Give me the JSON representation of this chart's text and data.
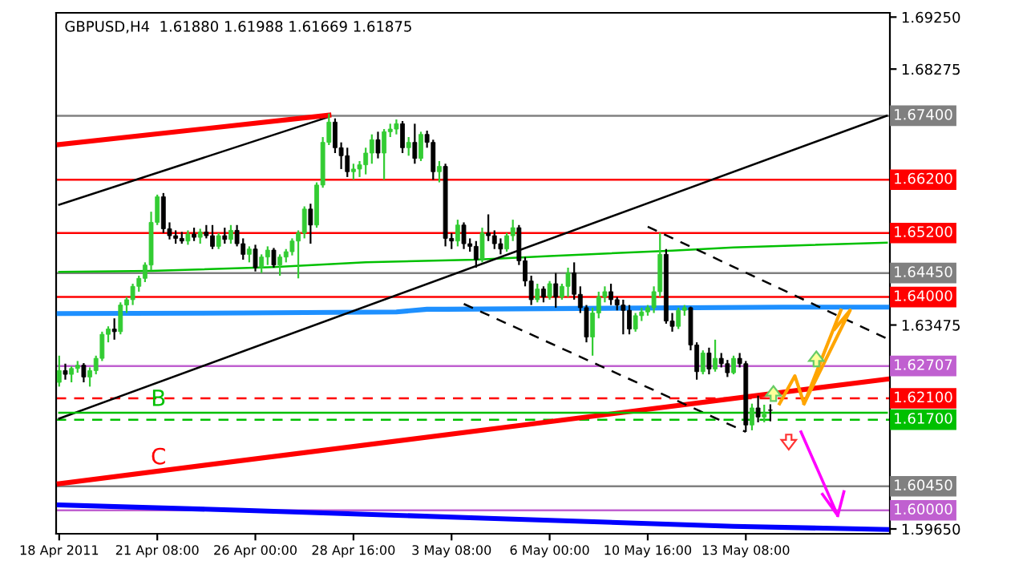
{
  "chart_data": {
    "type": "candlestick",
    "title": "GBPUSD,H4  1.61880 1.61988 1.61669 1.61875",
    "categories": [
      "18 Apr 2011",
      null,
      null,
      null,
      null,
      null,
      null,
      null,
      null,
      null,
      null,
      null,
      null,
      null,
      null,
      null,
      "21 Apr 08:00",
      null,
      null,
      null,
      null,
      null,
      null,
      null,
      null,
      null,
      null,
      null,
      null,
      null,
      null,
      null,
      "26 Apr 00:00",
      null,
      null,
      null,
      null,
      null,
      null,
      null,
      null,
      null,
      null,
      null,
      null,
      null,
      null,
      null,
      "28 Apr 16:00",
      null,
      null,
      null,
      null,
      null,
      null,
      null,
      null,
      null,
      null,
      null,
      null,
      null,
      null,
      null,
      "3 May 08:00",
      null,
      null,
      null,
      null,
      null,
      null,
      null,
      null,
      null,
      null,
      null,
      null,
      null,
      null,
      null,
      "6 May 00:00",
      null,
      null,
      null,
      null,
      null,
      null,
      null,
      null,
      null,
      null,
      null,
      null,
      null,
      null,
      null,
      "10 May 16:00",
      null,
      null,
      null,
      null,
      null,
      null,
      null,
      null,
      null,
      null,
      null,
      null,
      null,
      null,
      null,
      "13 May 08:00",
      null,
      null,
      null,
      null,
      null,
      null,
      null,
      null,
      null,
      null,
      null,
      null,
      null,
      null,
      null,
      null,
      null,
      null,
      null,
      null,
      null,
      null,
      null
    ],
    "ohlc": [
      [
        1.624,
        1.629,
        1.6232,
        1.6262
      ],
      [
        1.6262,
        1.6275,
        1.6245,
        1.6255
      ],
      [
        1.6255,
        1.627,
        1.624,
        1.6266
      ],
      [
        1.6266,
        1.628,
        1.6258,
        1.6272
      ],
      [
        1.6272,
        1.6276,
        1.624,
        1.625
      ],
      [
        1.625,
        1.6268,
        1.6232,
        1.6262
      ],
      [
        1.6262,
        1.629,
        1.6255,
        1.6285
      ],
      [
        1.6285,
        1.6335,
        1.628,
        1.633
      ],
      [
        1.633,
        1.6345,
        1.6315,
        1.634
      ],
      [
        1.634,
        1.636,
        1.632,
        1.6335
      ],
      [
        1.6335,
        1.639,
        1.633,
        1.6385
      ],
      [
        1.6385,
        1.64,
        1.637,
        1.6395
      ],
      [
        1.6395,
        1.6425,
        1.6385,
        1.642
      ],
      [
        1.642,
        1.644,
        1.641,
        1.6435
      ],
      [
        1.6435,
        1.6465,
        1.6428,
        1.646
      ],
      [
        1.646,
        1.656,
        1.645,
        1.654
      ],
      [
        1.654,
        1.6592,
        1.6535,
        1.6588
      ],
      [
        1.6588,
        1.6595,
        1.652,
        1.6528
      ],
      [
        1.6528,
        1.654,
        1.6508,
        1.6515
      ],
      [
        1.6515,
        1.6525,
        1.65,
        1.651
      ],
      [
        1.651,
        1.6522,
        1.65,
        1.6505
      ],
      [
        1.6505,
        1.6525,
        1.6498,
        1.6518
      ],
      [
        1.6518,
        1.653,
        1.6505,
        1.6512
      ],
      [
        1.6512,
        1.6528,
        1.65,
        1.6522
      ],
      [
        1.6522,
        1.6535,
        1.651,
        1.6515
      ],
      [
        1.6515,
        1.6535,
        1.649,
        1.6495
      ],
      [
        1.6495,
        1.652,
        1.649,
        1.6515
      ],
      [
        1.6515,
        1.653,
        1.65,
        1.6508
      ],
      [
        1.6508,
        1.6535,
        1.65,
        1.6525
      ],
      [
        1.6525,
        1.6535,
        1.6495,
        1.65
      ],
      [
        1.65,
        1.651,
        1.647,
        1.648
      ],
      [
        1.648,
        1.6495,
        1.6465,
        1.649
      ],
      [
        1.649,
        1.6498,
        1.6448,
        1.6455
      ],
      [
        1.6455,
        1.648,
        1.6445,
        1.6475
      ],
      [
        1.6475,
        1.6495,
        1.646,
        1.6488
      ],
      [
        1.6488,
        1.6492,
        1.6455,
        1.646
      ],
      [
        1.646,
        1.648,
        1.644,
        1.6475
      ],
      [
        1.6475,
        1.649,
        1.6465,
        1.6485
      ],
      [
        1.6485,
        1.651,
        1.6478,
        1.6505
      ],
      [
        1.6505,
        1.6525,
        1.6435,
        1.652
      ],
      [
        1.652,
        1.657,
        1.651,
        1.6565
      ],
      [
        1.6565,
        1.6575,
        1.65,
        1.6535
      ],
      [
        1.6535,
        1.6615,
        1.653,
        1.661
      ],
      [
        1.661,
        1.67,
        1.6605,
        1.669
      ],
      [
        1.669,
        1.6744,
        1.6685,
        1.6728
      ],
      [
        1.6728,
        1.6735,
        1.667,
        1.668
      ],
      [
        1.668,
        1.669,
        1.664,
        1.6665
      ],
      [
        1.6665,
        1.668,
        1.6625,
        1.6635
      ],
      [
        1.6635,
        1.665,
        1.662,
        1.664
      ],
      [
        1.664,
        1.6655,
        1.6625,
        1.6648
      ],
      [
        1.6648,
        1.668,
        1.663,
        1.667
      ],
      [
        1.667,
        1.6705,
        1.665,
        1.6695
      ],
      [
        1.6695,
        1.671,
        1.666,
        1.667
      ],
      [
        1.667,
        1.6715,
        1.662,
        1.671
      ],
      [
        1.671,
        1.6725,
        1.67,
        1.6715
      ],
      [
        1.6715,
        1.6733,
        1.6705,
        1.6725
      ],
      [
        1.6725,
        1.673,
        1.667,
        1.668
      ],
      [
        1.668,
        1.67,
        1.6665,
        1.669
      ],
      [
        1.669,
        1.6725,
        1.665,
        1.666
      ],
      [
        1.666,
        1.671,
        1.6655,
        1.6705
      ],
      [
        1.6705,
        1.6712,
        1.668,
        1.669
      ],
      [
        1.669,
        1.6695,
        1.662,
        1.6635
      ],
      [
        1.6635,
        1.6655,
        1.6615,
        1.6645
      ],
      [
        1.6645,
        1.665,
        1.6495,
        1.651
      ],
      [
        1.651,
        1.652,
        1.649,
        1.6505
      ],
      [
        1.6505,
        1.6545,
        1.6495,
        1.6535
      ],
      [
        1.6535,
        1.654,
        1.649,
        1.65
      ],
      [
        1.65,
        1.651,
        1.6485,
        1.6495
      ],
      [
        1.6495,
        1.6505,
        1.6455,
        1.647
      ],
      [
        1.647,
        1.653,
        1.6465,
        1.652
      ],
      [
        1.652,
        1.6555,
        1.6505,
        1.6515
      ],
      [
        1.6515,
        1.6525,
        1.649,
        1.65
      ],
      [
        1.65,
        1.651,
        1.648,
        1.649
      ],
      [
        1.649,
        1.652,
        1.6485,
        1.6515
      ],
      [
        1.6515,
        1.6545,
        1.6505,
        1.653
      ],
      [
        1.653,
        1.6535,
        1.646,
        1.6468
      ],
      [
        1.6468,
        1.6475,
        1.642,
        1.643
      ],
      [
        1.643,
        1.644,
        1.6385,
        1.6395
      ],
      [
        1.6395,
        1.6425,
        1.639,
        1.6415
      ],
      [
        1.6415,
        1.642,
        1.639,
        1.64
      ],
      [
        1.64,
        1.643,
        1.6395,
        1.6425
      ],
      [
        1.6425,
        1.6445,
        1.638,
        1.64
      ],
      [
        1.64,
        1.6425,
        1.6395,
        1.642
      ],
      [
        1.642,
        1.6455,
        1.64,
        1.6445
      ],
      [
        1.6445,
        1.6465,
        1.6395,
        1.6405
      ],
      [
        1.6405,
        1.642,
        1.637,
        1.638
      ],
      [
        1.638,
        1.6385,
        1.6315,
        1.6325
      ],
      [
        1.6325,
        1.638,
        1.629,
        1.637
      ],
      [
        1.637,
        1.641,
        1.636,
        1.64
      ],
      [
        1.64,
        1.642,
        1.639,
        1.641
      ],
      [
        1.641,
        1.6425,
        1.6385,
        1.6395
      ],
      [
        1.6395,
        1.64,
        1.6375,
        1.6385
      ],
      [
        1.6385,
        1.6395,
        1.633,
        1.6375
      ],
      [
        1.6375,
        1.6385,
        1.633,
        1.634
      ],
      [
        1.634,
        1.637,
        1.6335,
        1.6365
      ],
      [
        1.6365,
        1.638,
        1.6355,
        1.6372
      ],
      [
        1.6372,
        1.6385,
        1.6365,
        1.638
      ],
      [
        1.638,
        1.642,
        1.637,
        1.641
      ],
      [
        1.641,
        1.652,
        1.64,
        1.648
      ],
      [
        1.648,
        1.649,
        1.635,
        1.6355
      ],
      [
        1.6355,
        1.637,
        1.6335,
        1.6345
      ],
      [
        1.6345,
        1.638,
        1.634,
        1.6375
      ],
      [
        1.6375,
        1.6385,
        1.6365,
        1.638
      ],
      [
        1.638,
        1.6382,
        1.63,
        1.631
      ],
      [
        1.631,
        1.6315,
        1.6245,
        1.626
      ],
      [
        1.626,
        1.63,
        1.6255,
        1.6295
      ],
      [
        1.6295,
        1.6305,
        1.6255,
        1.6265
      ],
      [
        1.6265,
        1.632,
        1.626,
        1.6285
      ],
      [
        1.6285,
        1.6295,
        1.6268,
        1.6275
      ],
      [
        1.6275,
        1.6282,
        1.625,
        1.6258
      ],
      [
        1.6258,
        1.629,
        1.6255,
        1.6285
      ],
      [
        1.6285,
        1.6295,
        1.6268,
        1.6275
      ],
      [
        1.6275,
        1.628,
        1.6147,
        1.616
      ],
      [
        1.616,
        1.62,
        1.615,
        1.6192
      ],
      [
        1.6192,
        1.6215,
        1.6165,
        1.6175
      ],
      [
        1.6175,
        1.6198,
        1.6165,
        1.618
      ],
      [
        1.6188,
        1.61988,
        1.61669,
        1.61875
      ],
      null,
      null,
      null,
      null,
      null,
      null,
      null,
      null,
      null,
      null,
      null,
      null,
      null,
      null,
      null,
      null,
      null,
      null,
      null
    ],
    "series": [
      {
        "type": "line",
        "color": "#00c000",
        "values": [
          1.6447,
          null,
          null,
          null,
          null,
          null,
          null,
          null,
          null,
          null,
          null,
          null,
          null,
          null,
          null,
          1.6449,
          null,
          null,
          null,
          null,
          null,
          null,
          null,
          null,
          null,
          null,
          null,
          null,
          null,
          null,
          null,
          null,
          null,
          null,
          null,
          1.6456,
          null,
          null,
          null,
          null,
          null,
          null,
          null,
          null,
          null,
          null,
          null,
          null,
          null,
          null,
          1.6465,
          null,
          null,
          null,
          null,
          null,
          null,
          null,
          null,
          null,
          null,
          null,
          null,
          null,
          null,
          null,
          null,
          null,
          1.647,
          null,
          null,
          null,
          null,
          null,
          null,
          null,
          null,
          null,
          null,
          null,
          1.6477,
          null,
          null,
          null,
          null,
          null,
          null,
          null,
          null,
          null,
          null,
          null,
          null,
          null,
          null,
          null,
          null,
          null,
          null,
          null,
          1.6487,
          null,
          null,
          null,
          null,
          null,
          null,
          null,
          null,
          null,
          1.6493,
          null,
          null,
          null,
          null,
          null,
          null,
          null,
          null,
          null,
          null,
          null,
          null,
          null,
          null,
          null,
          null,
          null,
          null,
          null,
          null,
          null,
          null,
          null,
          null,
          1.6502
        ]
      },
      {
        "type": "line",
        "color": "#1e90ff",
        "values": [
          1.6369,
          null,
          null,
          null,
          null,
          null,
          null,
          null,
          null,
          null,
          null,
          null,
          null,
          null,
          null,
          null,
          null,
          null,
          null,
          null,
          null,
          null,
          null,
          null,
          null,
          null,
          null,
          null,
          null,
          null,
          1.637,
          null,
          null,
          null,
          null,
          null,
          null,
          null,
          null,
          null,
          null,
          null,
          null,
          null,
          null,
          null,
          null,
          null,
          null,
          null,
          null,
          null,
          null,
          null,
          null,
          1.6372,
          null,
          null,
          null,
          null,
          1.6377,
          null,
          null,
          1.6377,
          null,
          null,
          null,
          null,
          null,
          null,
          null,
          null,
          null,
          null,
          null,
          null,
          null,
          null,
          null,
          null,
          null,
          null,
          null,
          null,
          null,
          null,
          null,
          null,
          null,
          null,
          null,
          null,
          null,
          null,
          null,
          null,
          null,
          null,
          null,
          null,
          null,
          null,
          null,
          null,
          null,
          null,
          null,
          null,
          null,
          null,
          null,
          null,
          null,
          null,
          null,
          null,
          null,
          null,
          1.6381,
          null,
          null,
          null,
          null,
          null,
          null,
          null,
          null,
          null,
          null,
          null,
          null,
          null,
          null,
          null,
          null,
          1.6381
        ]
      },
      {
        "type": "line",
        "color": "#0000ff",
        "values": [
          1.601,
          null,
          null,
          null,
          null,
          null,
          null,
          null,
          null,
          null,
          null,
          null,
          null,
          null,
          null,
          null,
          null,
          null,
          null,
          null,
          null,
          null,
          null,
          null,
          null,
          null,
          null,
          null,
          null,
          null,
          1.6,
          null,
          null,
          null,
          null,
          null,
          null,
          null,
          null,
          null,
          null,
          null,
          null,
          null,
          null,
          null,
          null,
          null,
          null,
          null,
          null,
          null,
          null,
          null,
          null,
          null,
          null,
          null,
          null,
          null,
          null,
          null,
          null,
          null,
          null,
          null,
          null,
          null,
          null,
          null,
          1.5985,
          null,
          null,
          null,
          null,
          null,
          null,
          null,
          null,
          null,
          null,
          null,
          null,
          null,
          null,
          null,
          null,
          null,
          null,
          null,
          null,
          null,
          null,
          null,
          null,
          null,
          null,
          null,
          null,
          null,
          null,
          null,
          null,
          null,
          null,
          null,
          null,
          null,
          null,
          null,
          1.597,
          null,
          null,
          null,
          null,
          null,
          null,
          null,
          null,
          null,
          null,
          null,
          null,
          null,
          null,
          null,
          null,
          null,
          null,
          null,
          null,
          null,
          null,
          null,
          null,
          1.5964
        ]
      },
      {
        "type": "line",
        "color": "#000000",
        "values": [
          1.6573,
          null,
          null,
          null,
          null,
          null,
          null,
          null,
          null,
          null,
          null,
          null,
          null,
          null,
          null,
          null,
          null,
          null,
          null,
          null,
          null,
          null,
          null,
          null,
          null,
          null,
          null,
          null,
          null,
          null,
          null,
          null,
          null,
          null,
          null,
          null,
          null,
          null,
          null,
          null,
          null,
          null,
          null,
          null,
          1.6738,
          null,
          null,
          null,
          null,
          null,
          null,
          null,
          null,
          null,
          null,
          null,
          null,
          null,
          null,
          null,
          null,
          null,
          null,
          null,
          null,
          null,
          null,
          null,
          null,
          null,
          null,
          null,
          null,
          null,
          null,
          null,
          null,
          null,
          null,
          null,
          null,
          null,
          null,
          null,
          null,
          null,
          null,
          null,
          null,
          null,
          null,
          null,
          null,
          null,
          null,
          null,
          null,
          null,
          null,
          null,
          null,
          null,
          null,
          null,
          null,
          null,
          null,
          null,
          null,
          null,
          null,
          null,
          null,
          null,
          null,
          null,
          null,
          null,
          null,
          null,
          null,
          null,
          null,
          null,
          null,
          null,
          null,
          null,
          null,
          null,
          null,
          null,
          null,
          null,
          null,
          null
        ]
      },
      {
        "type": "line",
        "color": "#000000",
        "values": [
          1.6172,
          null,
          null,
          null,
          null,
          null,
          null,
          null,
          null,
          null,
          null,
          null,
          null,
          null,
          null,
          null,
          null,
          null,
          null,
          null,
          null,
          null,
          null,
          null,
          null,
          null,
          null,
          null,
          null,
          null,
          null,
          null,
          null,
          null,
          null,
          null,
          null,
          null,
          null,
          null,
          null,
          null,
          null,
          null,
          null,
          null,
          null,
          null,
          null,
          null,
          null,
          null,
          null,
          null,
          null,
          null,
          null,
          null,
          null,
          null,
          null,
          null,
          null,
          null,
          null,
          null,
          null,
          null,
          null,
          null,
          null,
          null,
          null,
          null,
          null,
          null,
          null,
          null,
          null,
          null,
          null,
          null,
          null,
          null,
          null,
          null,
          null,
          null,
          null,
          null,
          null,
          null,
          null,
          null,
          null,
          null,
          null,
          null,
          null,
          null,
          null,
          null,
          null,
          null,
          null,
          null,
          null,
          null,
          null,
          null,
          null,
          null,
          null,
          null,
          null,
          null,
          null,
          null,
          null,
          null,
          null,
          null,
          null,
          null,
          null,
          null,
          null,
          null,
          null,
          null,
          null,
          null,
          null,
          null,
          null,
          1.674
        ]
      },
      {
        "type": "line",
        "color": "#ff0000",
        "values": [
          1.6686,
          null,
          null,
          null,
          null,
          null,
          null,
          null,
          null,
          null,
          null,
          null,
          null,
          null,
          null,
          null,
          null,
          null,
          null,
          null,
          null,
          null,
          null,
          null,
          null,
          null,
          null,
          null,
          null,
          null,
          null,
          null,
          null,
          null,
          null,
          null,
          null,
          null,
          null,
          null,
          null,
          null,
          null,
          null,
          1.6741,
          null,
          null,
          null,
          null,
          null,
          null,
          null,
          null,
          null,
          null,
          null,
          null,
          null,
          null,
          null,
          null,
          null,
          null,
          null,
          null,
          null,
          null,
          null,
          null,
          null,
          null,
          null,
          null,
          null,
          null,
          null,
          null,
          null,
          null,
          null,
          null,
          null,
          null,
          null,
          null,
          null,
          null,
          null,
          null,
          null,
          null,
          null,
          null,
          null,
          null,
          null,
          null,
          null,
          null,
          null,
          null,
          null,
          null,
          null,
          null,
          null,
          null,
          null,
          null,
          null,
          null,
          null,
          null,
          null,
          null,
          null,
          null,
          null,
          null,
          null,
          null,
          null,
          null,
          null,
          null,
          null,
          null,
          null,
          null,
          null,
          null,
          null,
          null,
          null,
          null,
          null
        ]
      },
      {
        "type": "line",
        "color": "#ff0000",
        "name": "C",
        "values": [
          1.605,
          null,
          null,
          null,
          null,
          null,
          null,
          null,
          null,
          null,
          null,
          null,
          null,
          null,
          null,
          null,
          null,
          null,
          null,
          null,
          null,
          null,
          null,
          null,
          null,
          null,
          null,
          null,
          null,
          null,
          null,
          null,
          null,
          null,
          null,
          null,
          null,
          null,
          null,
          null,
          null,
          null,
          null,
          null,
          null,
          null,
          null,
          null,
          null,
          null,
          null,
          null,
          null,
          null,
          null,
          null,
          null,
          null,
          null,
          null,
          null,
          null,
          null,
          null,
          null,
          null,
          null,
          null,
          null,
          null,
          null,
          null,
          null,
          null,
          null,
          null,
          null,
          null,
          null,
          null,
          null,
          null,
          null,
          null,
          null,
          null,
          null,
          null,
          null,
          null,
          null,
          null,
          null,
          null,
          null,
          null,
          null,
          null,
          null,
          null,
          null,
          null,
          null,
          null,
          null,
          null,
          null,
          null,
          null,
          null,
          null,
          null,
          null,
          null,
          null,
          null,
          null,
          null,
          null,
          null,
          null,
          null,
          null,
          null,
          null,
          null,
          null,
          null,
          null,
          null,
          null,
          null,
          null,
          null,
          null,
          1.6246
        ]
      },
      {
        "type": "line",
        "color": "#000000",
        "line_style": "dashed",
        "values": [
          null,
          null,
          null,
          null,
          null,
          null,
          null,
          null,
          null,
          null,
          null,
          null,
          null,
          null,
          null,
          null,
          null,
          null,
          null,
          null,
          null,
          null,
          null,
          null,
          null,
          null,
          null,
          null,
          null,
          null,
          null,
          null,
          null,
          null,
          null,
          null,
          null,
          null,
          null,
          null,
          null,
          null,
          null,
          null,
          null,
          null,
          null,
          null,
          null,
          null,
          null,
          null,
          null,
          null,
          null,
          null,
          null,
          null,
          null,
          null,
          null,
          null,
          null,
          null,
          null,
          null,
          null,
          null,
          null,
          null,
          null,
          null,
          null,
          null,
          null,
          null,
          null,
          null,
          null,
          null,
          null,
          null,
          null,
          null,
          null,
          null,
          null,
          null,
          null,
          null,
          null,
          null,
          null,
          null,
          null,
          null,
          1.6532,
          null,
          null,
          null,
          null,
          null,
          null,
          null,
          null,
          null,
          null,
          null,
          null,
          null,
          null,
          null,
          null,
          null,
          null,
          null,
          null,
          null,
          null,
          null,
          null,
          null,
          null,
          null,
          null,
          null,
          null,
          null,
          null,
          null,
          null,
          null,
          null,
          null,
          null,
          1.6322
        ]
      },
      {
        "type": "line",
        "color": "#000000",
        "line_style": "dashed",
        "values": [
          null,
          null,
          null,
          null,
          null,
          null,
          null,
          null,
          null,
          null,
          null,
          null,
          null,
          null,
          null,
          null,
          null,
          null,
          null,
          null,
          null,
          null,
          null,
          null,
          null,
          null,
          null,
          null,
          null,
          null,
          null,
          null,
          null,
          null,
          null,
          null,
          null,
          null,
          null,
          null,
          null,
          null,
          null,
          null,
          null,
          null,
          null,
          null,
          null,
          null,
          null,
          null,
          null,
          null,
          null,
          null,
          null,
          null,
          null,
          null,
          null,
          null,
          null,
          null,
          null,
          null,
          1.6387,
          null,
          null,
          null,
          null,
          null,
          null,
          null,
          null,
          null,
          null,
          null,
          null,
          null,
          null,
          null,
          null,
          null,
          null,
          null,
          null,
          null,
          null,
          null,
          null,
          null,
          null,
          null,
          null,
          null,
          null,
          null,
          null,
          null,
          null,
          null,
          null,
          null,
          null,
          null,
          null,
          null,
          null,
          null,
          null,
          null,
          1.6147,
          null,
          null,
          null,
          null,
          null,
          null,
          null,
          null,
          null,
          null,
          null,
          null,
          null,
          null,
          null,
          null,
          null,
          null,
          null,
          null,
          null,
          null,
          null
        ]
      },
      {
        "type": "line",
        "color": "#00c000",
        "name": "B",
        "values": [
          1.6183,
          null,
          null,
          null,
          null,
          null,
          null,
          null,
          null,
          null,
          null,
          null,
          null,
          null,
          null,
          null,
          null,
          null,
          null,
          null,
          null,
          null,
          null,
          null,
          null,
          null,
          null,
          null,
          null,
          null,
          null,
          null,
          null,
          null,
          null,
          null,
          null,
          null,
          null,
          null,
          null,
          null,
          null,
          null,
          null,
          null,
          null,
          null,
          null,
          null,
          null,
          null,
          null,
          null,
          null,
          null,
          null,
          null,
          null,
          null,
          null,
          null,
          null,
          null,
          null,
          null,
          null,
          null,
          null,
          null,
          null,
          null,
          null,
          null,
          null,
          null,
          null,
          null,
          null,
          null,
          null,
          null,
          null,
          null,
          null,
          null,
          null,
          null,
          null,
          null,
          null,
          null,
          null,
          null,
          null,
          null,
          null,
          null,
          null,
          null,
          null,
          null,
          null,
          null,
          null,
          null,
          null,
          null,
          null,
          null,
          null,
          null,
          null,
          null,
          null,
          null,
          null,
          null,
          null,
          null,
          null,
          null,
          null,
          null,
          null,
          null,
          null,
          null,
          null,
          null,
          null,
          null,
          null,
          null,
          null,
          1.6183
        ]
      }
    ],
    "ref_lines": [
      {
        "axis": "y",
        "value": 1.674,
        "label": "1.67400",
        "color": "#808080"
      },
      {
        "axis": "y",
        "value": 1.662,
        "label": "1.66200",
        "color": "#ff0000"
      },
      {
        "axis": "y",
        "value": 1.652,
        "label": "1.65200",
        "color": "#ff0000"
      },
      {
        "axis": "y",
        "value": 1.6445,
        "label": "1.64450",
        "color": "#808080"
      },
      {
        "axis": "y",
        "value": 1.64,
        "label": "1.64000",
        "color": "#ff0000"
      },
      {
        "axis": "y",
        "value": 1.62707,
        "label": "1.62707",
        "color": "#c060d0"
      },
      {
        "axis": "y",
        "value": 1.621,
        "label": "1.62100",
        "color": "#ff0000",
        "line_style": "dashed"
      },
      {
        "axis": "y",
        "value": 1.617,
        "label": "1.61700",
        "color": "#00c000",
        "line_style": "dashed"
      },
      {
        "axis": "y",
        "value": 1.6045,
        "label": "1.60450",
        "color": "#808080"
      },
      {
        "axis": "y",
        "value": 1.6,
        "label": "1.60000",
        "color": "#c060d0"
      }
    ],
    "ylim": [
      1.5956,
      1.6933
    ],
    "yticks": [
      {
        "value": 1.6925,
        "label": "1.69250"
      },
      {
        "value": 1.68275,
        "label": "1.68275"
      },
      {
        "value": 1.63475,
        "label": "1.63475"
      },
      {
        "value": 1.5965,
        "label": "1.59650"
      }
    ]
  }
}
